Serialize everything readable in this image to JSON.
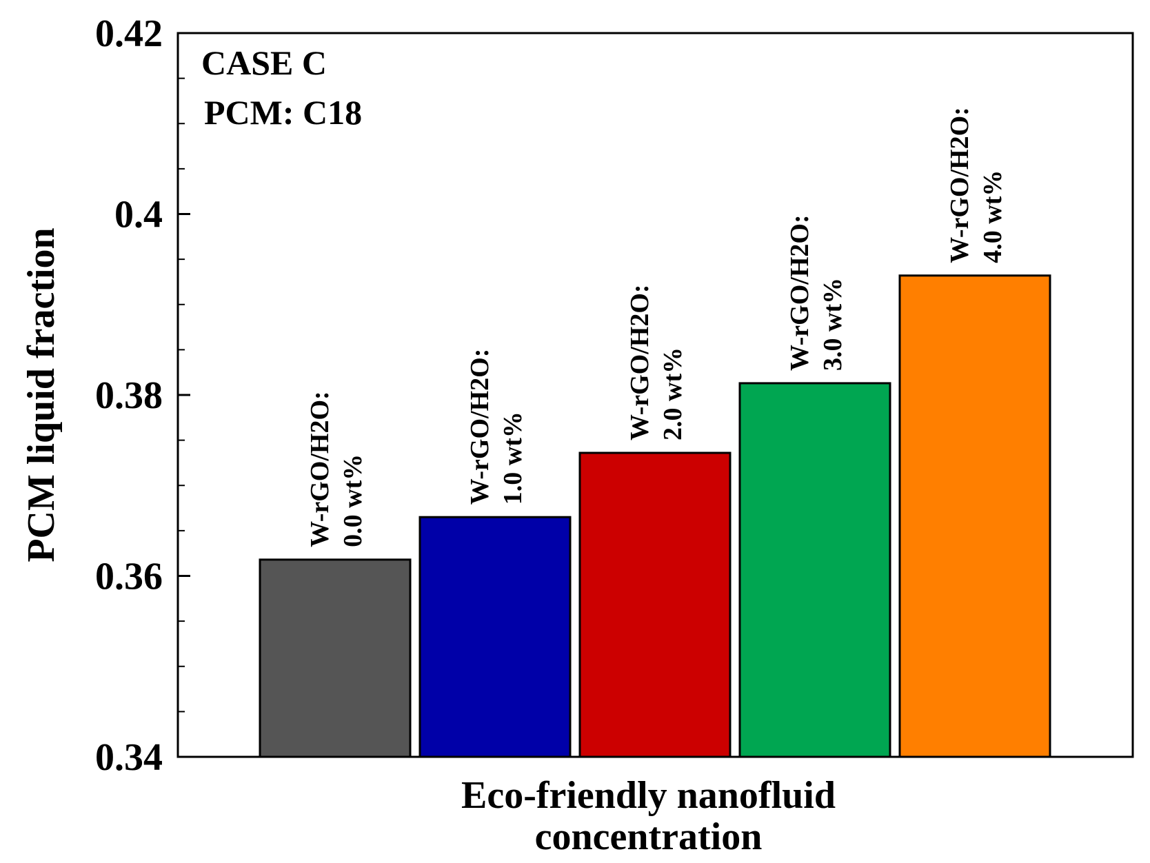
{
  "chart_data": {
    "type": "bar",
    "title": "",
    "xlabel_lines": [
      "Eco-friendly nanofluid",
      "concentration"
    ],
    "ylabel": "PCM liquid fraction",
    "ylim": [
      0.34,
      0.42
    ],
    "yticks": [
      0.34,
      0.36,
      0.38,
      0.4,
      0.42
    ],
    "ytick_labels": [
      "0.34",
      "0.36",
      "0.38",
      "0.4",
      "0.42"
    ],
    "minor_ytick_step": 0.005,
    "grid": false,
    "annotations": [
      "CASE C",
      "PCM: C18"
    ],
    "categories": [
      "W-rGO/H2O: 0.0 wt%",
      "W-rGO/H2O: 1.0 wt%",
      "W-rGO/H2O: 2.0 wt%",
      "W-rGO/H2O: 3.0 wt%",
      "W-rGO/H2O: 4.0 wt%"
    ],
    "bar_labels": [
      [
        "W-rGO/H2O:",
        "0.0 wt%"
      ],
      [
        "W-rGO/H2O:",
        "1.0 wt%"
      ],
      [
        "W-rGO/H2O:",
        "2.0 wt%"
      ],
      [
        "W-rGO/H2O:",
        "3.0 wt%"
      ],
      [
        "W-rGO/H2O:",
        "4.0 wt%"
      ]
    ],
    "values": [
      0.3618,
      0.3665,
      0.3736,
      0.3813,
      0.3932
    ],
    "colors": [
      "#555555",
      "#0000A8",
      "#CC0000",
      "#00A651",
      "#FF7F00"
    ]
  }
}
